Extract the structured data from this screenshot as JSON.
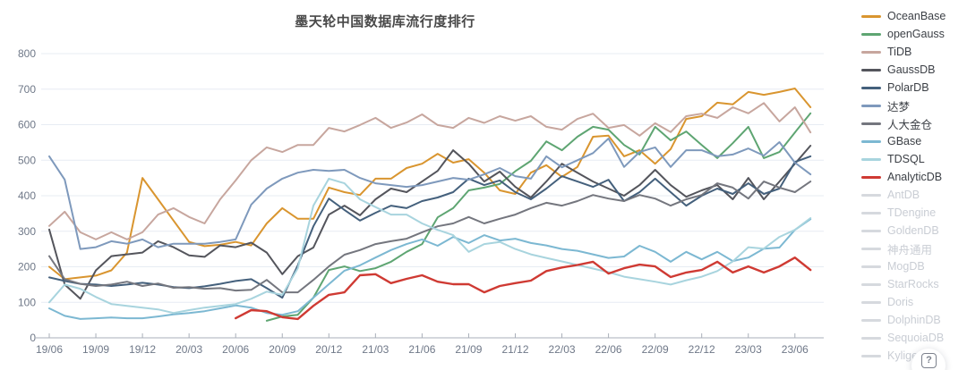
{
  "title": "墨天轮中国数据库流行度排行",
  "help_button": {
    "icon_label": "?"
  },
  "axis": {
    "y_tick_labels": [
      "0",
      "100",
      "200",
      "300",
      "400",
      "500",
      "600",
      "700",
      "800"
    ],
    "x_tick_labels": [
      "19/06",
      "19/09",
      "19/12",
      "20/03",
      "20/06",
      "20/09",
      "20/12",
      "21/03",
      "21/06",
      "21/09",
      "21/12",
      "22/03",
      "22/06",
      "22/09",
      "22/12",
      "23/03",
      "23/06"
    ]
  },
  "colors": {
    "grid": "#e7ecf3",
    "axis": "#a9afb9",
    "tick_text": "#6f7888",
    "title_text": "#494949",
    "disabled_legend": "#c9cdd4"
  },
  "chart_data": {
    "type": "line",
    "title": "墨天轮中国数据库流行度排行",
    "xlabel": "",
    "ylabel": "",
    "ylim": [
      0,
      800
    ],
    "y_ticks": [
      0,
      100,
      200,
      300,
      400,
      500,
      600,
      700,
      800
    ],
    "grid": true,
    "legend_position": "right",
    "n_points": 50,
    "x_start": "2019/06",
    "x_end": "2023/07",
    "x_interval": "monthly",
    "x_tick_labels": [
      "19/06",
      "19/09",
      "19/12",
      "20/03",
      "20/06",
      "20/09",
      "20/12",
      "21/03",
      "21/06",
      "21/09",
      "21/12",
      "22/03",
      "22/06",
      "22/09",
      "22/12",
      "23/03",
      "23/06"
    ],
    "x_tick_indices": [
      0,
      3,
      6,
      9,
      12,
      15,
      18,
      21,
      24,
      27,
      30,
      33,
      36,
      39,
      42,
      45,
      48
    ],
    "series": [
      {
        "name": "OceanBase",
        "color": "#d9952f",
        "enabled": true,
        "width": 2,
        "values": [
          200,
          165,
          170,
          175,
          190,
          240,
          450,
          390,
          330,
          270,
          258,
          262,
          270,
          260,
          322,
          365,
          335,
          335,
          423,
          410,
          402,
          448,
          448,
          478,
          490,
          518,
          493,
          503,
          465,
          415,
          405,
          465,
          486,
          453,
          481,
          566,
          569,
          511,
          528,
          490,
          531,
          616,
          624,
          662,
          657,
          692,
          684,
          692,
          702,
          649
        ]
      },
      {
        "name": "openGauss",
        "color": "#5ea572",
        "enabled": true,
        "width": 2,
        "values": [
          null,
          null,
          null,
          null,
          null,
          null,
          null,
          null,
          null,
          null,
          null,
          null,
          null,
          null,
          48,
          60,
          65,
          113,
          191,
          201,
          188,
          196,
          214,
          242,
          264,
          339,
          365,
          415,
          423,
          433,
          469,
          498,
          553,
          528,
          566,
          594,
          586,
          543,
          516,
          594,
          556,
          581,
          543,
          506,
          548,
          594,
          506,
          523,
          578,
          632
        ]
      },
      {
        "name": "TiDB",
        "color": "#c7a69e",
        "enabled": true,
        "width": 2,
        "values": [
          315,
          355,
          297,
          277,
          297,
          277,
          297,
          347,
          365,
          340,
          322,
          390,
          443,
          500,
          536,
          523,
          543,
          543,
          591,
          581,
          599,
          619,
          591,
          606,
          629,
          599,
          591,
          619,
          605,
          624,
          611,
          624,
          594,
          586,
          616,
          631,
          591,
          599,
          569,
          604,
          579,
          624,
          631,
          619,
          649,
          632,
          661,
          609,
          649,
          578
        ]
      },
      {
        "name": "GaussDB",
        "color": "#54555c",
        "enabled": true,
        "width": 2,
        "values": [
          305,
          150,
          110,
          190,
          230,
          235,
          240,
          272,
          255,
          232,
          228,
          260,
          255,
          268,
          240,
          179,
          230,
          254,
          347,
          372,
          345,
          390,
          420,
          410,
          440,
          470,
          528,
          490,
          440,
          468,
          425,
          395,
          440,
          490,
          465,
          440,
          420,
          400,
          430,
          473,
          430,
          397,
          415,
          430,
          390,
          450,
          390,
          440,
          490,
          541
        ]
      },
      {
        "name": "PolarDB",
        "color": "#44607c",
        "enabled": true,
        "width": 2,
        "values": [
          170,
          160,
          152,
          150,
          146,
          150,
          155,
          150,
          143,
          140,
          145,
          152,
          160,
          165,
          140,
          113,
          204,
          314,
          392,
          360,
          330,
          352,
          372,
          365,
          385,
          395,
          410,
          448,
          430,
          443,
          410,
          390,
          420,
          455,
          440,
          425,
          445,
          385,
          410,
          448,
          410,
          372,
          400,
          420,
          405,
          435,
          405,
          420,
          495,
          511
        ]
      },
      {
        "name": "达梦",
        "color": "#7e99bc",
        "enabled": true,
        "width": 2,
        "values": [
          511,
          445,
          250,
          255,
          272,
          265,
          277,
          255,
          265,
          265,
          265,
          270,
          277,
          375,
          420,
          448,
          465,
          473,
          470,
          473,
          450,
          435,
          430,
          425,
          430,
          440,
          450,
          445,
          460,
          478,
          455,
          448,
          511,
          480,
          500,
          520,
          561,
          481,
          523,
          536,
          481,
          528,
          528,
          511,
          516,
          533,
          513,
          551,
          493,
          460
        ]
      },
      {
        "name": "人大金仓",
        "color": "#74767e",
        "enabled": true,
        "width": 2,
        "values": [
          230,
          165,
          152,
          146,
          150,
          158,
          146,
          153,
          141,
          143,
          138,
          140,
          133,
          135,
          163,
          128,
          128,
          163,
          201,
          234,
          247,
          264,
          272,
          279,
          297,
          314,
          322,
          340,
          322,
          335,
          347,
          365,
          380,
          372,
          385,
          402,
          392,
          385,
          402,
          392,
          372,
          390,
          402,
          435,
          423,
          392,
          440,
          423,
          410,
          440
        ]
      },
      {
        "name": "GBase",
        "color": "#7cb8d2",
        "enabled": true,
        "width": 2,
        "values": [
          83,
          62,
          53,
          55,
          57,
          55,
          55,
          60,
          66,
          70,
          75,
          83,
          91,
          85,
          70,
          65,
          75,
          113,
          151,
          189,
          204,
          226,
          247,
          264,
          277,
          259,
          284,
          267,
          289,
          274,
          279,
          267,
          260,
          250,
          245,
          235,
          225,
          229,
          259,
          242,
          214,
          242,
          221,
          242,
          216,
          226,
          251,
          254,
          304,
          334
        ]
      },
      {
        "name": "TDSQL",
        "color": "#a8d4de",
        "enabled": true,
        "width": 2,
        "values": [
          100,
          150,
          138,
          115,
          95,
          90,
          85,
          80,
          70,
          78,
          85,
          90,
          95,
          110,
          130,
          121,
          196,
          372,
          448,
          435,
          390,
          368,
          347,
          347,
          322,
          304,
          289,
          242,
          264,
          270,
          250,
          235,
          225,
          215,
          205,
          195,
          185,
          172,
          165,
          158,
          150,
          162,
          172,
          188,
          215,
          255,
          251,
          284,
          304,
          337
        ]
      },
      {
        "name": "AnalyticDB",
        "color": "#cf3a33",
        "enabled": true,
        "width": 2.4,
        "values": [
          null,
          null,
          null,
          null,
          null,
          null,
          null,
          null,
          null,
          null,
          null,
          null,
          55,
          78,
          75,
          58,
          53,
          90,
          121,
          128,
          176,
          179,
          154,
          166,
          176,
          158,
          151,
          151,
          128,
          146,
          154,
          161,
          188,
          198,
          205,
          214,
          181,
          196,
          206,
          201,
          171,
          184,
          191,
          214,
          184,
          201,
          184,
          201,
          226,
          191
        ]
      },
      {
        "name": "AntDB",
        "enabled": false
      },
      {
        "name": "TDengine",
        "enabled": false
      },
      {
        "name": "GoldenDB",
        "enabled": false
      },
      {
        "name": "神舟通用",
        "enabled": false
      },
      {
        "name": "MogDB",
        "enabled": false
      },
      {
        "name": "StarRocks",
        "enabled": false
      },
      {
        "name": "Doris",
        "enabled": false
      },
      {
        "name": "DolphinDB",
        "enabled": false
      },
      {
        "name": "SequoiaDB",
        "enabled": false
      },
      {
        "name": "Kyligence",
        "enabled": false
      }
    ]
  }
}
